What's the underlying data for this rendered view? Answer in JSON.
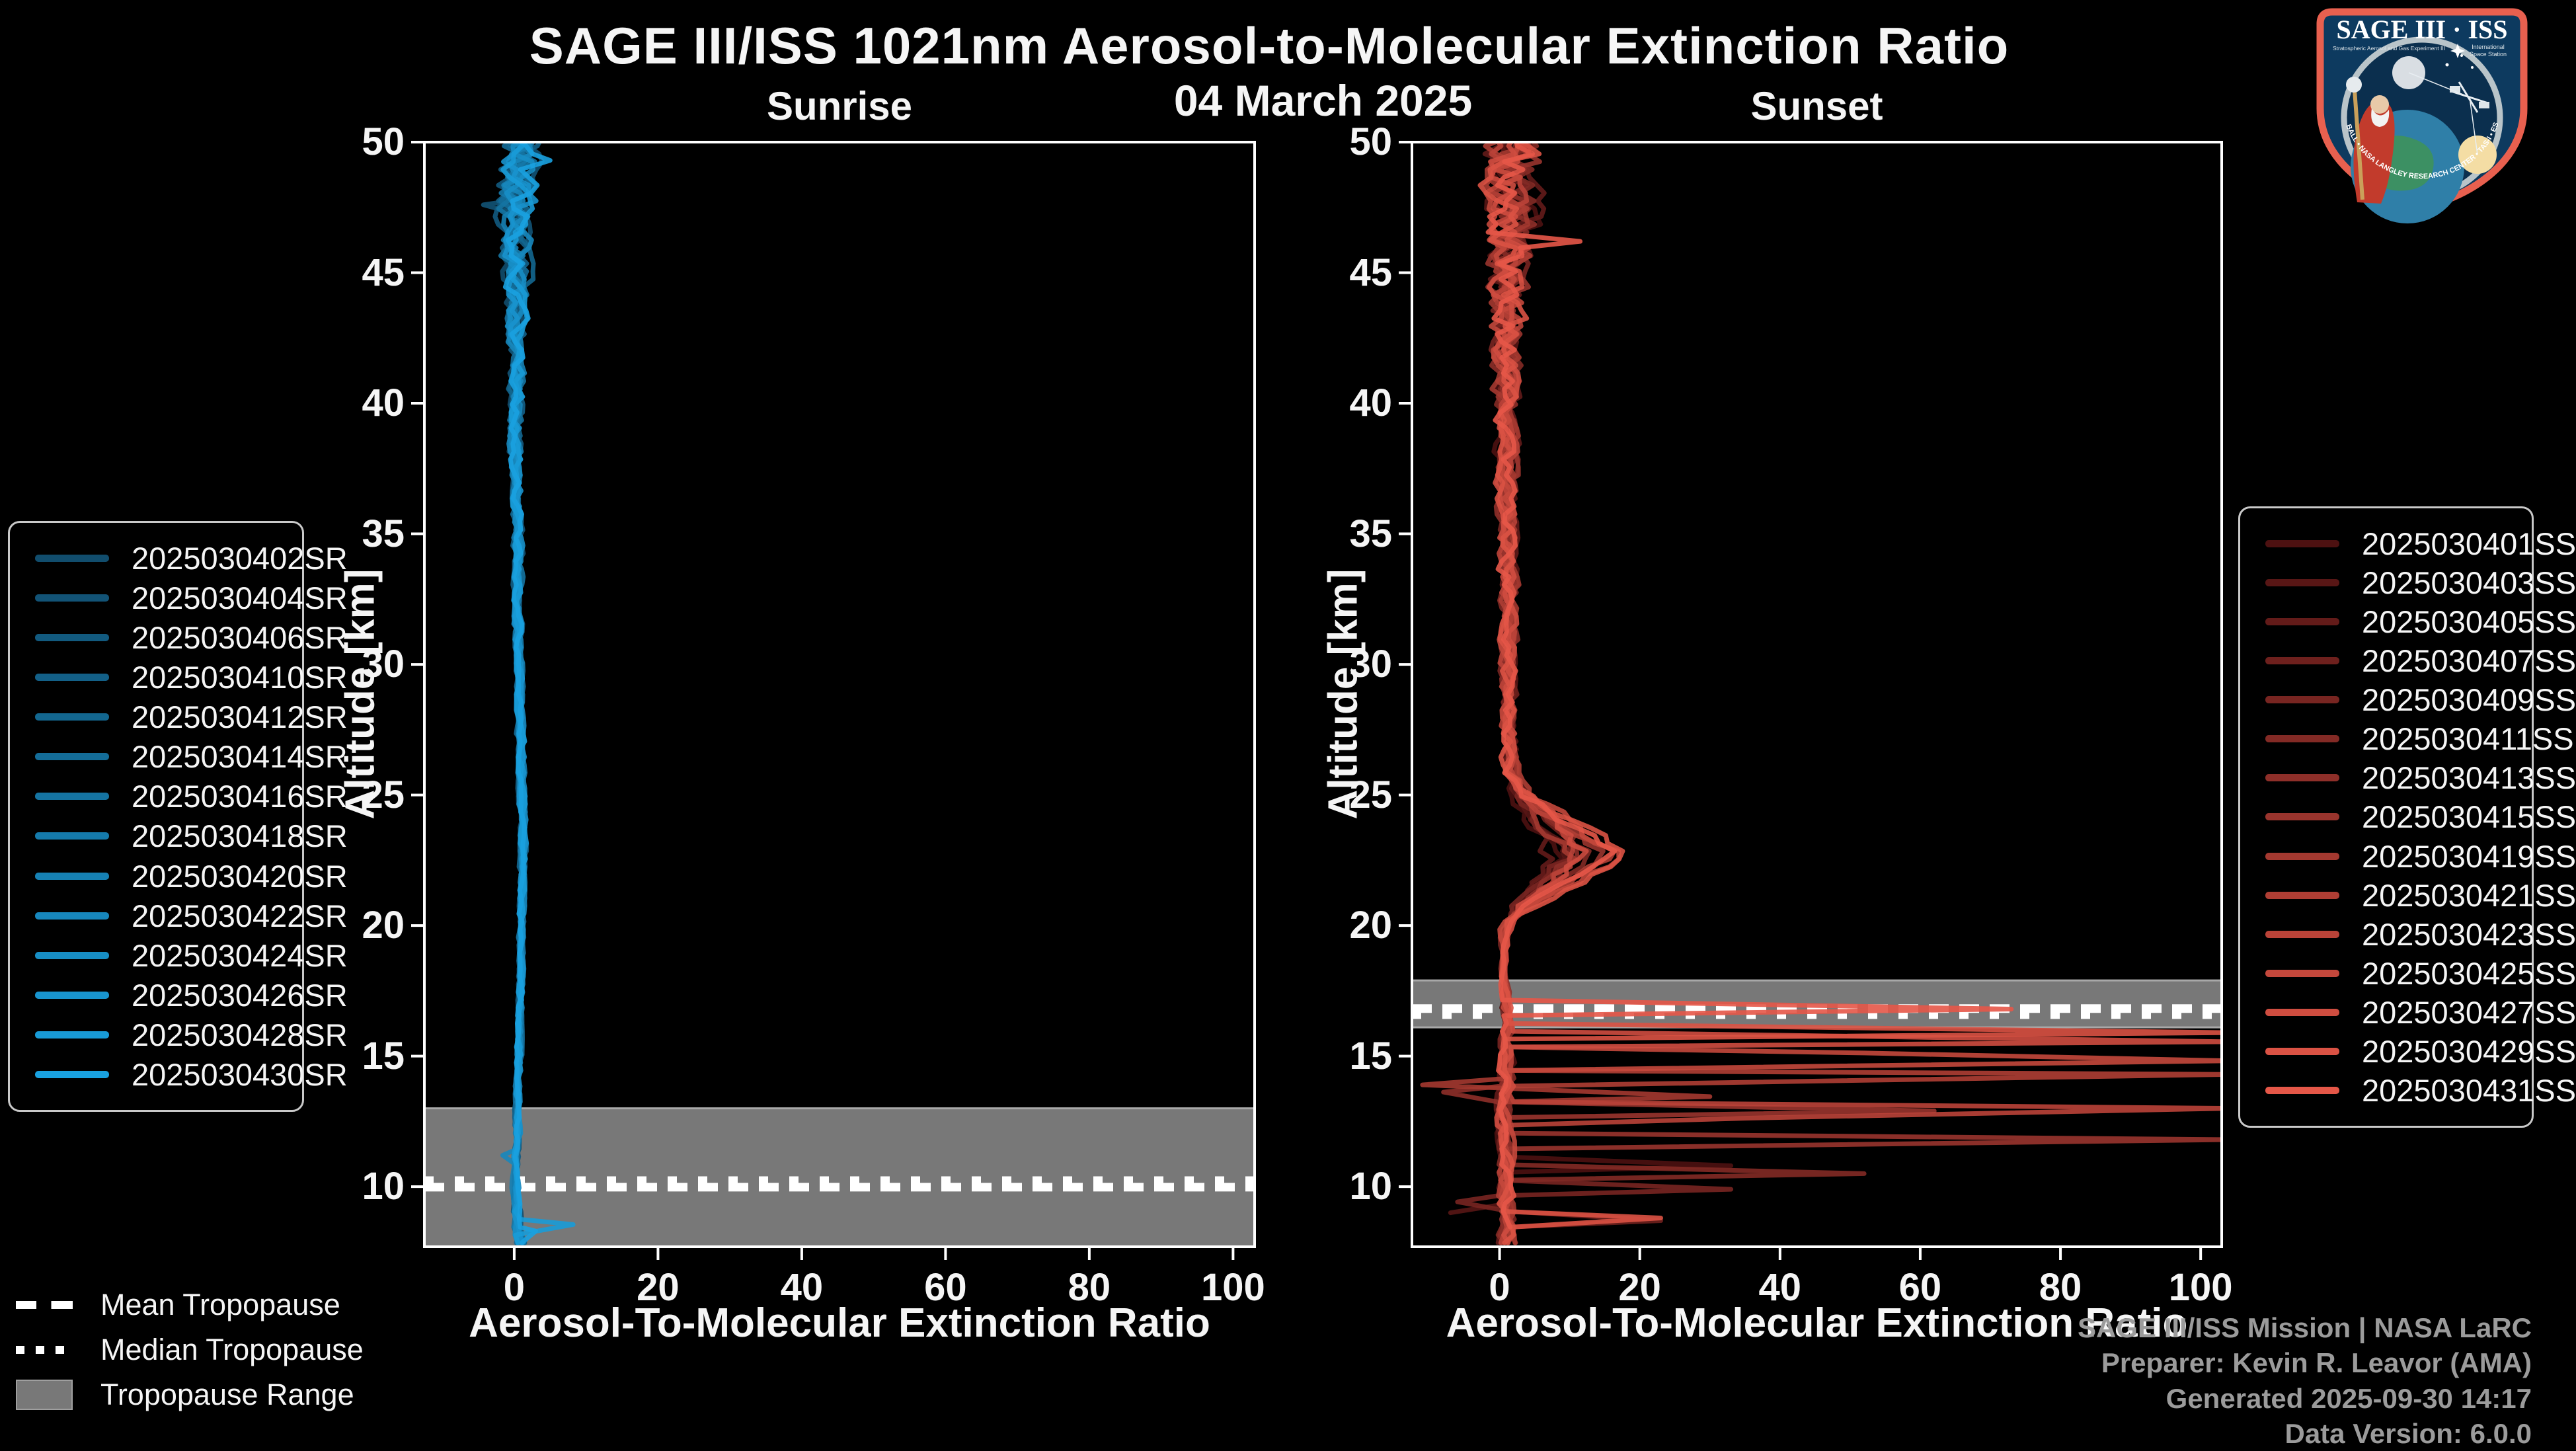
{
  "title": "SAGE III/ISS 1021nm Aerosol-to-Molecular Extinction Ratio",
  "subtitle_date": "04 March 2025",
  "footer": {
    "lines": [
      "SAGE III/ISS Mission | NASA LaRC",
      "Preparer: Kevin R. Leavor (AMA)",
      "Generated 2025-09-30 14:17",
      "Data Version: 6.0.0"
    ]
  },
  "tropopause_legend": {
    "mean": "Mean Tropopause",
    "median": "Median Tropopause",
    "range": "Tropopause Range"
  },
  "logo": {
    "title": "SAGE III · ISS",
    "sub_left": "Stratospheric Aerosol and Gas Experiment III",
    "sub_right1": "International",
    "sub_right2": "Space Station",
    "ring_text": "BALL • NASA LANGLEY RESEARCH CENTER • TAS-I • ESA"
  },
  "colors": {
    "background": "#000000",
    "axis": "#ffffff",
    "band": "#787878",
    "band_edge": "#a8a8a8",
    "footer_text": "#9b9b9b",
    "legend_border": "#c9c9c9",
    "logo_border": "#e8604f",
    "logo_bg": "#0d3a5f"
  },
  "chart_data": [
    {
      "panel": "sunrise",
      "type": "line",
      "title": "Sunrise",
      "xlabel": "Aerosol-To-Molecular Extinction Ratio",
      "ylabel": "Altitude [km]",
      "xlim": [
        -12.5,
        103
      ],
      "ylim": [
        7.7,
        50
      ],
      "xticks": [
        0,
        20,
        40,
        60,
        80,
        100
      ],
      "yticks": [
        50,
        45,
        40,
        35,
        30,
        25,
        20,
        15,
        10
      ],
      "grid": false,
      "legend_position": "left-outside",
      "tropopause": {
        "band_km": [
          7.7,
          13.0
        ],
        "mean_km": 9.98,
        "median_km": 10.22
      },
      "base_profile": [
        [
          50,
          0.4
        ],
        [
          48,
          0.3
        ],
        [
          46,
          0.2
        ],
        [
          44,
          0.2
        ],
        [
          42,
          0.2
        ],
        [
          40,
          0.3
        ],
        [
          38,
          0.3
        ],
        [
          36,
          0.4
        ],
        [
          34,
          0.5
        ],
        [
          32,
          0.6
        ],
        [
          30,
          0.7
        ],
        [
          28,
          0.9
        ],
        [
          26,
          1.0
        ],
        [
          24,
          1.2
        ],
        [
          22,
          1.2
        ],
        [
          20,
          1.0
        ],
        [
          18,
          0.9
        ],
        [
          16,
          0.7
        ],
        [
          14,
          0.5
        ],
        [
          12,
          0.4
        ],
        [
          11,
          0.3
        ],
        [
          10,
          0.25
        ],
        [
          9,
          0.4
        ],
        [
          7.7,
          0.8
        ]
      ],
      "noise_amplitude": [
        [
          50,
          2.3
        ],
        [
          48,
          2.1
        ],
        [
          46,
          1.5
        ],
        [
          44,
          1.1
        ],
        [
          42,
          0.9
        ],
        [
          40,
          0.75
        ],
        [
          36,
          0.55
        ],
        [
          32,
          0.45
        ],
        [
          28,
          0.4
        ],
        [
          24,
          0.35
        ],
        [
          20,
          0.3
        ],
        [
          16,
          0.28
        ],
        [
          12,
          0.3
        ],
        [
          10,
          0.35
        ],
        [
          7.7,
          0.55
        ]
      ],
      "bump_profile": [],
      "series": [
        {
          "name": "2025030402SR",
          "color": "#114d6d",
          "seed": 101,
          "end_km": 8.6,
          "bump_gain": 0,
          "spikes": []
        },
        {
          "name": "2025030404SR",
          "color": "#125376",
          "seed": 102,
          "end_km": 8.0,
          "bump_gain": 0,
          "spikes": [
            [
              47.6,
              -4.3
            ]
          ]
        },
        {
          "name": "2025030406SR",
          "color": "#125a7f",
          "seed": 103,
          "end_km": 7.7,
          "bump_gain": 0,
          "spikes": []
        },
        {
          "name": "2025030410SR",
          "color": "#136088",
          "seed": 104,
          "end_km": 7.7,
          "bump_gain": 0,
          "spikes": []
        },
        {
          "name": "2025030412SR",
          "color": "#136790",
          "seed": 105,
          "end_km": 7.7,
          "bump_gain": 0,
          "spikes": []
        },
        {
          "name": "2025030414SR",
          "color": "#146d99",
          "seed": 106,
          "end_km": 7.7,
          "bump_gain": 0,
          "spikes": []
        },
        {
          "name": "2025030416SR",
          "color": "#1574a2",
          "seed": 107,
          "end_km": 7.7,
          "bump_gain": 0,
          "spikes": []
        },
        {
          "name": "2025030418SR",
          "color": "#157aab",
          "seed": 108,
          "end_km": 7.7,
          "bump_gain": 0,
          "spikes": []
        },
        {
          "name": "2025030420SR",
          "color": "#1681b4",
          "seed": 109,
          "end_km": 7.7,
          "bump_gain": 0,
          "spikes": []
        },
        {
          "name": "2025030422SR",
          "color": "#1787bd",
          "seed": 110,
          "end_km": 7.7,
          "bump_gain": 0,
          "spikes": [
            [
              11.2,
              -1.6
            ]
          ]
        },
        {
          "name": "2025030424SR",
          "color": "#178ec5",
          "seed": 111,
          "end_km": 7.7,
          "bump_gain": 0,
          "spikes": []
        },
        {
          "name": "2025030426SR",
          "color": "#1894ce",
          "seed": 112,
          "end_km": 7.7,
          "bump_gain": 0,
          "spikes": []
        },
        {
          "name": "2025030428SR",
          "color": "#189bd7",
          "seed": 113,
          "end_km": 7.7,
          "bump_gain": 0,
          "spikes": [
            [
              8.55,
              8.2
            ]
          ]
        },
        {
          "name": "2025030430SR",
          "color": "#19a1e0",
          "seed": 114,
          "end_km": 7.7,
          "bump_gain": 0,
          "spikes": [
            [
              49.3,
              5
            ],
            [
              8.3,
              3
            ]
          ]
        }
      ]
    },
    {
      "panel": "sunset",
      "type": "line",
      "title": "Sunset",
      "xlabel": "Aerosol-To-Molecular Extinction Ratio",
      "ylabel": "Altitude [km]",
      "xlim": [
        -12.5,
        103
      ],
      "ylim": [
        7.7,
        50
      ],
      "xticks": [
        0,
        20,
        40,
        60,
        80,
        100
      ],
      "yticks": [
        50,
        45,
        40,
        35,
        30,
        25,
        20,
        15,
        10
      ],
      "grid": false,
      "legend_position": "right-outside",
      "tropopause": {
        "band_km": [
          16.1,
          17.9
        ],
        "mean_km": 16.82,
        "median_km": 16.6
      },
      "base_profile": [
        [
          50,
          1.2
        ],
        [
          48,
          1.5
        ],
        [
          46,
          1.8
        ],
        [
          44,
          1.2
        ],
        [
          42,
          0.9
        ],
        [
          40,
          0.8
        ],
        [
          37,
          0.9
        ],
        [
          34,
          1.1
        ],
        [
          31,
          1.4
        ],
        [
          29,
          1.3
        ],
        [
          27,
          1.3
        ],
        [
          26,
          1.5
        ],
        [
          25,
          1.6
        ],
        [
          24,
          1.5
        ],
        [
          23,
          1.4
        ],
        [
          22,
          1.3
        ],
        [
          21,
          1.1
        ],
        [
          20,
          0.9
        ],
        [
          19,
          0.6
        ],
        [
          18.4,
          0.5
        ],
        [
          18,
          0.6
        ],
        [
          17.4,
          0.8
        ],
        [
          16.8,
          1.0
        ],
        [
          16.2,
          1.1
        ],
        [
          15.6,
          1.0
        ],
        [
          15,
          0.9
        ],
        [
          14,
          0.9
        ],
        [
          13,
          0.9
        ],
        [
          12,
          0.8
        ],
        [
          11,
          0.8
        ],
        [
          10,
          0.8
        ],
        [
          9,
          0.9
        ],
        [
          7.7,
          1.0
        ]
      ],
      "noise_amplitude": [
        [
          50,
          3.0
        ],
        [
          47,
          2.8
        ],
        [
          45,
          2.2
        ],
        [
          42,
          1.6
        ],
        [
          40,
          1.2
        ],
        [
          36,
          1.0
        ],
        [
          32,
          0.9
        ],
        [
          28,
          0.8
        ],
        [
          25,
          1.0
        ],
        [
          23,
          1.4
        ],
        [
          21,
          0.9
        ],
        [
          19.5,
          0.45
        ],
        [
          18.5,
          0.3
        ],
        [
          17.5,
          0.45
        ],
        [
          16.5,
          0.55
        ],
        [
          15.5,
          0.7
        ],
        [
          14,
          0.9
        ],
        [
          12,
          0.85
        ],
        [
          10,
          0.8
        ],
        [
          7.7,
          0.9
        ]
      ],
      "bump_profile": [
        [
          25.8,
          0
        ],
        [
          25,
          2
        ],
        [
          24,
          6.5
        ],
        [
          23.2,
          9.5
        ],
        [
          22.7,
          12
        ],
        [
          22.2,
          9.5
        ],
        [
          21.4,
          6
        ],
        [
          20.6,
          2
        ],
        [
          20,
          0
        ]
      ],
      "series": [
        {
          "name": "2025030401SS",
          "color": "#4d1111",
          "seed": 201,
          "end_km": 10.4,
          "bump_gain": 0.55,
          "spikes": [
            [
              10.8,
              33
            ]
          ]
        },
        {
          "name": "2025030403SS",
          "color": "#581615",
          "seed": 202,
          "end_km": 8.9,
          "bump_gain": 0.7,
          "spikes": [
            [
              9.0,
              -7
            ]
          ]
        },
        {
          "name": "2025030405SS",
          "color": "#631b19",
          "seed": 203,
          "end_km": 7.7,
          "bump_gain": 0.5,
          "spikes": []
        },
        {
          "name": "2025030407SS",
          "color": "#6e201d",
          "seed": 204,
          "end_km": 7.7,
          "bump_gain": 0.85,
          "spikes": [
            [
              8.7,
              23
            ]
          ]
        },
        {
          "name": "2025030409SS",
          "color": "#782521",
          "seed": 205,
          "end_km": 7.7,
          "bump_gain": 0.6,
          "spikes": [
            [
              9.9,
              33
            ],
            [
              9.42,
              -6
            ]
          ]
        },
        {
          "name": "2025030411SS",
          "color": "#832a25",
          "seed": 206,
          "end_km": 7.7,
          "bump_gain": 0.95,
          "spikes": [
            [
              10.5,
              52
            ]
          ]
        },
        {
          "name": "2025030413SS",
          "color": "#8e2f29",
          "seed": 207,
          "end_km": 7.7,
          "bump_gain": 0.7,
          "spikes": [
            [
              13.62,
              -8
            ]
          ]
        },
        {
          "name": "2025030415SS",
          "color": "#99342d",
          "seed": 208,
          "end_km": 7.7,
          "bump_gain": 1.1,
          "spikes": [
            [
              12.9,
              62
            ],
            [
              11.8,
              104
            ]
          ]
        },
        {
          "name": "2025030419SS",
          "color": "#a43930",
          "seed": 209,
          "end_km": 7.7,
          "bump_gain": 0.8,
          "spikes": [
            [
              13.9,
              -11
            ],
            [
              13.45,
              30
            ]
          ]
        },
        {
          "name": "2025030421SS",
          "color": "#af3e34",
          "seed": 210,
          "end_km": 7.7,
          "bump_gain": 1.2,
          "spikes": [
            [
              14.3,
              104
            ]
          ]
        },
        {
          "name": "2025030423SS",
          "color": "#ba4338",
          "seed": 211,
          "end_km": 7.7,
          "bump_gain": 0.9,
          "spikes": [
            [
              13.0,
              104
            ],
            [
              12.62,
              35
            ]
          ]
        },
        {
          "name": "2025030425SS",
          "color": "#c4483c",
          "seed": 212,
          "end_km": 7.7,
          "bump_gain": 1.35,
          "spikes": [
            [
              15.12,
              52
            ],
            [
              14.82,
              104
            ]
          ]
        },
        {
          "name": "2025030427SS",
          "color": "#cf4d40",
          "seed": 213,
          "end_km": 7.7,
          "bump_gain": 1.0,
          "spikes": [
            [
              15.55,
              104
            ]
          ]
        },
        {
          "name": "2025030429SS",
          "color": "#da5244",
          "seed": 214,
          "end_km": 7.7,
          "bump_gain": 1.45,
          "spikes": [
            [
              15.9,
              104
            ],
            [
              8.8,
              23
            ]
          ]
        },
        {
          "name": "2025030431SS",
          "color": "#e55748",
          "seed": 215,
          "end_km": 8.2,
          "bump_gain": 1.25,
          "spikes": [
            [
              46.2,
              11.5
            ],
            [
              16.8,
              73
            ]
          ]
        }
      ]
    }
  ]
}
